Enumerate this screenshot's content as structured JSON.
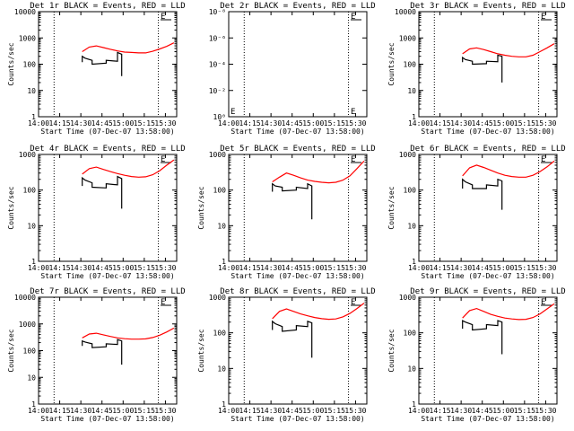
{
  "chart_data": [
    {
      "type": "line",
      "title": "Det 1r BLACK = Events, RED = LLD",
      "xlabel": "Start Time (07-Dec-07 13:58:00)",
      "ylabel": "Counts/sec",
      "x_tick_labels": [
        "14:00",
        "14:15",
        "14:30",
        "14:45",
        "15:00",
        "15:15",
        "15:30"
      ],
      "y_tick_labels": [
        "1",
        "10",
        "100",
        "1000",
        "10000"
      ],
      "ylim": [
        1,
        10000
      ],
      "y_scale": "log",
      "vertical_dotted_lines": [
        "14:11",
        "15:25"
      ],
      "legend_glyph": "E",
      "series": [
        {
          "name": "Events",
          "color": "#000000",
          "x": [
            "14:31",
            "14:31",
            "14:33",
            "14:38",
            "14:38",
            "14:48",
            "14:48",
            "14:56",
            "14:56",
            "14:59",
            "14:59"
          ],
          "y": [
            120,
            200,
            170,
            140,
            100,
            110,
            140,
            130,
            280,
            240,
            35
          ]
        },
        {
          "name": "LLD",
          "color": "#ff0000",
          "x": [
            "14:31",
            "14:36",
            "14:41",
            "14:46",
            "14:51",
            "14:56",
            "15:01",
            "15:06",
            "15:11",
            "15:16",
            "15:21",
            "15:26",
            "15:31",
            "15:36"
          ],
          "y": [
            300,
            450,
            500,
            430,
            370,
            320,
            290,
            280,
            270,
            270,
            310,
            380,
            480,
            650
          ]
        }
      ]
    },
    {
      "type": "line",
      "title": "Det 2r BLACK = Events, RED = LLD",
      "xlabel": "Start Time (07-Dec-07 13:58:00)",
      "ylabel": "",
      "x_tick_labels": [
        "14:00",
        "14:15",
        "14:30",
        "14:45",
        "15:00",
        "15:15",
        "15:30"
      ],
      "y_tick_labels": [
        "10⁰",
        "10⁻²",
        "10⁻⁴",
        "10⁻⁶",
        "10⁻⁸"
      ],
      "vertical_dotted_lines": [
        "14:11",
        "15:25"
      ],
      "legend_glyph": "E",
      "series": []
    },
    {
      "type": "line",
      "title": "Det 3r BLACK = Events, RED = LLD",
      "xlabel": "Start Time (07-Dec-07 13:58:00)",
      "ylabel": "Counts/sec",
      "x_tick_labels": [
        "14:00",
        "14:15",
        "14:30",
        "14:45",
        "15:00",
        "15:15",
        "15:30"
      ],
      "y_tick_labels": [
        "1",
        "10",
        "100",
        "1000",
        "10000"
      ],
      "ylim": [
        1,
        10000
      ],
      "y_scale": "log",
      "vertical_dotted_lines": [
        "14:11",
        "15:25"
      ],
      "legend_glyph": "E",
      "series": [
        {
          "name": "Events",
          "color": "#000000",
          "x": [
            "14:31",
            "14:31",
            "14:33",
            "14:38",
            "14:38",
            "14:48",
            "14:48",
            "14:56",
            "14:56",
            "14:59",
            "14:59"
          ],
          "y": [
            120,
            180,
            150,
            130,
            100,
            105,
            130,
            125,
            220,
            200,
            20
          ]
        },
        {
          "name": "LLD",
          "color": "#ff0000",
          "x": [
            "14:31",
            "14:36",
            "14:41",
            "14:46",
            "14:51",
            "14:56",
            "15:01",
            "15:06",
            "15:11",
            "15:16",
            "15:21",
            "15:26",
            "15:31",
            "15:36"
          ],
          "y": [
            250,
            380,
            420,
            360,
            300,
            250,
            220,
            200,
            190,
            190,
            220,
            300,
            420,
            600
          ]
        }
      ]
    },
    {
      "type": "line",
      "title": "Det 4r BLACK = Events, RED = LLD",
      "xlabel": "Start Time (07-Dec-07 13:58:00)",
      "ylabel": "Counts/sec",
      "x_tick_labels": [
        "14:00",
        "14:15",
        "14:30",
        "14:45",
        "15:00",
        "15:15",
        "15:30"
      ],
      "y_tick_labels": [
        "1",
        "10",
        "100",
        "1000"
      ],
      "ylim": [
        1,
        1000
      ],
      "y_scale": "log",
      "vertical_dotted_lines": [
        "14:11",
        "15:25"
      ],
      "legend_glyph": "E",
      "series": [
        {
          "name": "Events",
          "color": "#000000",
          "x": [
            "14:31",
            "14:31",
            "14:33",
            "14:38",
            "14:38",
            "14:48",
            "14:48",
            "14:56",
            "14:56",
            "14:59",
            "14:59"
          ],
          "y": [
            130,
            220,
            190,
            160,
            120,
            115,
            150,
            140,
            240,
            210,
            30
          ]
        },
        {
          "name": "LLD",
          "color": "#ff0000",
          "x": [
            "14:31",
            "14:36",
            "14:41",
            "14:46",
            "14:51",
            "14:56",
            "15:01",
            "15:06",
            "15:11",
            "15:16",
            "15:21",
            "15:26",
            "15:31",
            "15:36"
          ],
          "y": [
            280,
            400,
            440,
            380,
            330,
            290,
            260,
            240,
            230,
            235,
            270,
            350,
            500,
            700
          ]
        }
      ]
    },
    {
      "type": "line",
      "title": "Det 5r BLACK = Events, RED = LLD",
      "xlabel": "Start Time (07-Dec-07 13:58:00)",
      "ylabel": "Counts/sec",
      "x_tick_labels": [
        "14:00",
        "14:15",
        "14:30",
        "14:45",
        "15:00",
        "15:15",
        "15:30"
      ],
      "y_tick_labels": [
        "1",
        "10",
        "100",
        "1000"
      ],
      "ylim": [
        1,
        1000
      ],
      "y_scale": "log",
      "vertical_dotted_lines": [
        "14:11",
        "15:25"
      ],
      "legend_glyph": "E",
      "series": [
        {
          "name": "Events",
          "color": "#000000",
          "x": [
            "14:31",
            "14:31",
            "14:33",
            "14:38",
            "14:38",
            "14:48",
            "14:48",
            "14:56",
            "14:56",
            "14:59",
            "14:59"
          ],
          "y": [
            90,
            150,
            130,
            120,
            95,
            100,
            120,
            110,
            150,
            130,
            15
          ]
        },
        {
          "name": "LLD",
          "color": "#ff0000",
          "x": [
            "14:31",
            "14:36",
            "14:41",
            "14:46",
            "14:51",
            "14:56",
            "15:01",
            "15:06",
            "15:11",
            "15:16",
            "15:21",
            "15:26",
            "15:31",
            "15:36"
          ],
          "y": [
            170,
            230,
            300,
            260,
            220,
            190,
            175,
            165,
            160,
            165,
            190,
            250,
            400,
            650
          ]
        }
      ]
    },
    {
      "type": "line",
      "title": "Det 6r BLACK = Events, RED = LLD",
      "xlabel": "Start Time (07-Dec-07 13:58:00)",
      "ylabel": "Counts/sec",
      "x_tick_labels": [
        "14:00",
        "14:15",
        "14:30",
        "14:45",
        "15:00",
        "15:15",
        "15:30"
      ],
      "y_tick_labels": [
        "1",
        "10",
        "100",
        "1000"
      ],
      "ylim": [
        1,
        1000
      ],
      "y_scale": "log",
      "vertical_dotted_lines": [
        "14:11",
        "15:25"
      ],
      "legend_glyph": "E",
      "series": [
        {
          "name": "Events",
          "color": "#000000",
          "x": [
            "14:31",
            "14:31",
            "14:33",
            "14:38",
            "14:38",
            "14:48",
            "14:48",
            "14:56",
            "14:56",
            "14:59",
            "14:59"
          ],
          "y": [
            110,
            200,
            170,
            140,
            110,
            110,
            140,
            130,
            200,
            180,
            28
          ]
        },
        {
          "name": "LLD",
          "color": "#ff0000",
          "x": [
            "14:31",
            "14:36",
            "14:41",
            "14:46",
            "14:51",
            "14:56",
            "15:01",
            "15:06",
            "15:11",
            "15:16",
            "15:21",
            "15:26",
            "15:31",
            "15:36"
          ],
          "y": [
            250,
            420,
            500,
            430,
            360,
            300,
            260,
            240,
            230,
            230,
            260,
            330,
            450,
            650
          ]
        }
      ]
    },
    {
      "type": "line",
      "title": "Det 7r BLACK = Events, RED = LLD",
      "xlabel": "Start Time (07-Dec-07 13:58:00)",
      "ylabel": "Counts/sec",
      "x_tick_labels": [
        "14:00",
        "14:15",
        "14:30",
        "14:45",
        "15:00",
        "15:15",
        "15:30"
      ],
      "y_tick_labels": [
        "1",
        "10",
        "100",
        "1000",
        "10000"
      ],
      "ylim": [
        1,
        10000
      ],
      "y_scale": "log",
      "vertical_dotted_lines": [
        "14:11",
        "15:25"
      ],
      "legend_glyph": "E",
      "series": [
        {
          "name": "Events",
          "color": "#000000",
          "x": [
            "14:31",
            "14:31",
            "14:33",
            "14:38",
            "14:38",
            "14:48",
            "14:48",
            "14:56",
            "14:56",
            "14:59",
            "14:59"
          ],
          "y": [
            150,
            230,
            210,
            180,
            130,
            140,
            180,
            170,
            260,
            230,
            30
          ]
        },
        {
          "name": "LLD",
          "color": "#ff0000",
          "x": [
            "14:31",
            "14:36",
            "14:41",
            "14:46",
            "14:51",
            "14:56",
            "15:01",
            "15:06",
            "15:11",
            "15:16",
            "15:21",
            "15:26",
            "15:31",
            "15:36"
          ],
          "y": [
            300,
            420,
            450,
            390,
            340,
            300,
            280,
            270,
            270,
            275,
            310,
            380,
            500,
            700
          ]
        }
      ]
    },
    {
      "type": "line",
      "title": "Det 8r BLACK = Events, RED = LLD",
      "xlabel": "Start Time (07-Dec-07 13:58:00)",
      "ylabel": "Counts/sec",
      "x_tick_labels": [
        "14:00",
        "14:15",
        "14:30",
        "14:45",
        "15:00",
        "15:15",
        "15:30"
      ],
      "y_tick_labels": [
        "1",
        "10",
        "100",
        "1000"
      ],
      "ylim": [
        1,
        1000
      ],
      "y_scale": "log",
      "vertical_dotted_lines": [
        "14:11",
        "15:25"
      ],
      "legend_glyph": "E",
      "series": [
        {
          "name": "Events",
          "color": "#000000",
          "x": [
            "14:31",
            "14:31",
            "14:33",
            "14:38",
            "14:38",
            "14:48",
            "14:48",
            "14:56",
            "14:56",
            "14:59",
            "14:59"
          ],
          "y": [
            120,
            210,
            180,
            150,
            110,
            120,
            160,
            150,
            210,
            190,
            20
          ]
        },
        {
          "name": "LLD",
          "color": "#ff0000",
          "x": [
            "14:31",
            "14:36",
            "14:41",
            "14:46",
            "14:51",
            "14:56",
            "15:01",
            "15:06",
            "15:11",
            "15:16",
            "15:21",
            "15:26",
            "15:31",
            "15:36"
          ],
          "y": [
            250,
            400,
            470,
            400,
            340,
            300,
            270,
            250,
            240,
            245,
            280,
            350,
            480,
            680
          ]
        }
      ]
    },
    {
      "type": "line",
      "title": "Det 9r BLACK = Events, RED = LLD",
      "xlabel": "Start Time (07-Dec-07 13:58:00)",
      "ylabel": "Counts/sec",
      "x_tick_labels": [
        "14:00",
        "14:15",
        "14:30",
        "14:45",
        "15:00",
        "15:15",
        "15:30"
      ],
      "y_tick_labels": [
        "1",
        "10",
        "100",
        "1000"
      ],
      "ylim": [
        1,
        1000
      ],
      "y_scale": "log",
      "vertical_dotted_lines": [
        "14:11",
        "15:25"
      ],
      "legend_glyph": "E",
      "series": [
        {
          "name": "Events",
          "color": "#000000",
          "x": [
            "14:31",
            "14:31",
            "14:33",
            "14:38",
            "14:38",
            "14:48",
            "14:48",
            "14:56",
            "14:56",
            "14:59",
            "14:59"
          ],
          "y": [
            130,
            220,
            200,
            170,
            120,
            130,
            170,
            160,
            220,
            200,
            25
          ]
        },
        {
          "name": "LLD",
          "color": "#ff0000",
          "x": [
            "14:31",
            "14:36",
            "14:41",
            "14:46",
            "14:51",
            "14:56",
            "15:01",
            "15:06",
            "15:11",
            "15:16",
            "15:21",
            "15:26",
            "15:31",
            "15:36"
          ],
          "y": [
            260,
            420,
            480,
            400,
            330,
            290,
            260,
            245,
            235,
            240,
            270,
            340,
            470,
            650
          ]
        }
      ]
    }
  ]
}
